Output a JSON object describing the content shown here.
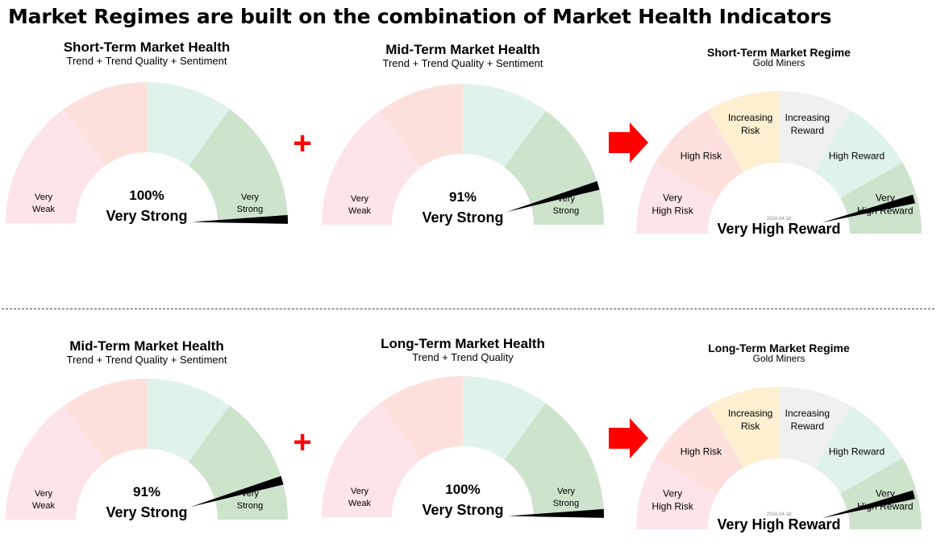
{
  "page": {
    "title": "Market Regimes are built on the combination of Market Health Indicators"
  },
  "colors": {
    "very_weak": "#fde4e8",
    "weak": "#fde0dc",
    "strong": "#e0f3ea",
    "very_strong": "#cde3cc",
    "increasing_risk": "#fdefcf",
    "increasing_reward": "#f0f0f0",
    "plus": "#ff0000",
    "arrow": "#ff0000"
  },
  "health_labels": {
    "very_weak": [
      "Very",
      "Weak"
    ],
    "very_strong": [
      "Very",
      "Strong"
    ]
  },
  "regime_labels": {
    "very_high_risk": [
      "Very",
      "High Risk"
    ],
    "high_risk": "High Risk",
    "increasing_risk": [
      "Increasing",
      "Risk"
    ],
    "increasing_reward": [
      "Increasing",
      "Reward"
    ],
    "high_reward": "High Reward",
    "very_high_reward": [
      "Very",
      "High Reward"
    ]
  },
  "row1": {
    "gauge1": {
      "title": "Short-Term Market Health",
      "subtitle": "Trend + Trend Quality + Sentiment",
      "value_text": "100%",
      "status": "Very Strong",
      "needle_pct": 100
    },
    "gauge2": {
      "title": "Mid-Term Market Health",
      "subtitle": "Trend + Trend Quality + Sentiment",
      "value_text": "91%",
      "status": "Very Strong",
      "needle_pct": 91
    },
    "regime": {
      "title": "Short-Term Market Regime",
      "subtitle": "Gold Miners",
      "date": "2024-04-18",
      "status": "Very High Reward",
      "needle_pct": 92
    }
  },
  "row2": {
    "gauge1": {
      "title": "Mid-Term Market Health",
      "subtitle": "Trend + Trend Quality + Sentiment",
      "value_text": "91%",
      "status": "Very Strong",
      "needle_pct": 91
    },
    "gauge2": {
      "title": "Long-Term Market Health",
      "subtitle": "Trend + Trend Quality",
      "value_text": "100%",
      "status": "Very Strong",
      "needle_pct": 100
    },
    "regime": {
      "title": "Long-Term Market Regime",
      "subtitle": "Gold Miners",
      "date": "2024-04-18",
      "status": "Very High Reward",
      "needle_pct": 92
    }
  },
  "operators": {
    "plus": "+"
  }
}
